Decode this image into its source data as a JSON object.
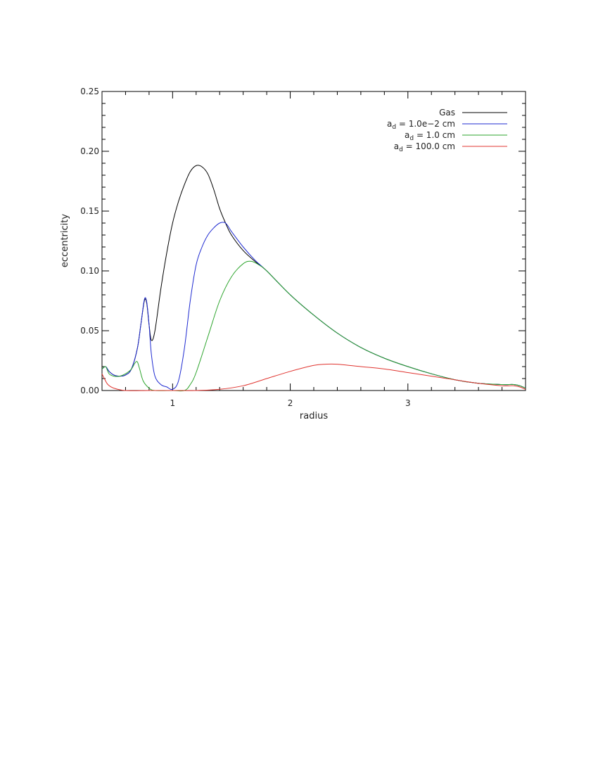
{
  "chart_data": {
    "type": "line",
    "xlabel": "radius",
    "ylabel": "eccentricity",
    "xlim": [
      0.4,
      4.0
    ],
    "ylim": [
      0.0,
      0.25
    ],
    "x_ticks": [
      1,
      2,
      3
    ],
    "x_tick_labels": [
      "1",
      "2",
      "3"
    ],
    "y_ticks": [
      0.0,
      0.05,
      0.1,
      0.15,
      0.2,
      0.25
    ],
    "y_tick_labels": [
      "0.00",
      "0.05",
      "0.10",
      "0.15",
      "0.20",
      "0.25"
    ],
    "grid": false,
    "legend_position": "top-right",
    "series": [
      {
        "name": "Gas",
        "color": "#000000",
        "points": [
          [
            0.4,
            0.018
          ],
          [
            0.43,
            0.02
          ],
          [
            0.46,
            0.016
          ],
          [
            0.5,
            0.013
          ],
          [
            0.55,
            0.012
          ],
          [
            0.6,
            0.013
          ],
          [
            0.65,
            0.018
          ],
          [
            0.7,
            0.035
          ],
          [
            0.73,
            0.055
          ],
          [
            0.76,
            0.075
          ],
          [
            0.78,
            0.073
          ],
          [
            0.8,
            0.055
          ],
          [
            0.82,
            0.042
          ],
          [
            0.85,
            0.05
          ],
          [
            0.9,
            0.085
          ],
          [
            0.95,
            0.115
          ],
          [
            1.0,
            0.14
          ],
          [
            1.05,
            0.158
          ],
          [
            1.1,
            0.172
          ],
          [
            1.15,
            0.183
          ],
          [
            1.2,
            0.188
          ],
          [
            1.25,
            0.187
          ],
          [
            1.3,
            0.181
          ],
          [
            1.35,
            0.168
          ],
          [
            1.4,
            0.152
          ],
          [
            1.45,
            0.14
          ],
          [
            1.5,
            0.13
          ],
          [
            1.6,
            0.117
          ],
          [
            1.7,
            0.108
          ],
          [
            1.8,
            0.1
          ],
          [
            2.0,
            0.08
          ],
          [
            2.2,
            0.063
          ],
          [
            2.4,
            0.048
          ],
          [
            2.6,
            0.036
          ],
          [
            2.8,
            0.027
          ],
          [
            3.0,
            0.02
          ],
          [
            3.2,
            0.014
          ],
          [
            3.4,
            0.009
          ],
          [
            3.6,
            0.006
          ],
          [
            3.8,
            0.005
          ],
          [
            3.9,
            0.005
          ],
          [
            3.95,
            0.004
          ],
          [
            4.0,
            0.002
          ]
        ]
      },
      {
        "name": "a_d = 1.0e-2 cm",
        "color": "#1f2bd1",
        "points": [
          [
            0.4,
            0.018
          ],
          [
            0.43,
            0.02
          ],
          [
            0.46,
            0.016
          ],
          [
            0.5,
            0.013
          ],
          [
            0.55,
            0.012
          ],
          [
            0.6,
            0.013
          ],
          [
            0.65,
            0.018
          ],
          [
            0.7,
            0.035
          ],
          [
            0.73,
            0.055
          ],
          [
            0.76,
            0.076
          ],
          [
            0.78,
            0.074
          ],
          [
            0.8,
            0.055
          ],
          [
            0.82,
            0.03
          ],
          [
            0.85,
            0.012
          ],
          [
            0.9,
            0.005
          ],
          [
            0.95,
            0.003
          ],
          [
            1.0,
            0.001
          ],
          [
            1.05,
            0.008
          ],
          [
            1.1,
            0.035
          ],
          [
            1.15,
            0.075
          ],
          [
            1.2,
            0.105
          ],
          [
            1.25,
            0.12
          ],
          [
            1.3,
            0.13
          ],
          [
            1.35,
            0.136
          ],
          [
            1.4,
            0.14
          ],
          [
            1.45,
            0.14
          ],
          [
            1.5,
            0.133
          ],
          [
            1.6,
            0.12
          ],
          [
            1.7,
            0.109
          ],
          [
            1.8,
            0.1
          ],
          [
            2.0,
            0.08
          ],
          [
            2.2,
            0.063
          ],
          [
            2.4,
            0.048
          ],
          [
            2.6,
            0.036
          ],
          [
            2.8,
            0.027
          ],
          [
            3.0,
            0.02
          ],
          [
            3.2,
            0.014
          ],
          [
            3.4,
            0.009
          ],
          [
            3.6,
            0.006
          ],
          [
            3.8,
            0.005
          ],
          [
            3.9,
            0.005
          ],
          [
            3.95,
            0.004
          ],
          [
            4.0,
            0.002
          ]
        ]
      },
      {
        "name": "a_d = 1.0 cm",
        "color": "#2ea52e",
        "points": [
          [
            0.4,
            0.018
          ],
          [
            0.43,
            0.02
          ],
          [
            0.46,
            0.014
          ],
          [
            0.5,
            0.012
          ],
          [
            0.55,
            0.012
          ],
          [
            0.6,
            0.014
          ],
          [
            0.65,
            0.018
          ],
          [
            0.68,
            0.023
          ],
          [
            0.7,
            0.024
          ],
          [
            0.72,
            0.018
          ],
          [
            0.75,
            0.008
          ],
          [
            0.8,
            0.002
          ],
          [
            0.85,
            0.0
          ],
          [
            1.0,
            0.0
          ],
          [
            1.1,
            0.0
          ],
          [
            1.15,
            0.005
          ],
          [
            1.2,
            0.015
          ],
          [
            1.3,
            0.045
          ],
          [
            1.4,
            0.075
          ],
          [
            1.5,
            0.095
          ],
          [
            1.6,
            0.106
          ],
          [
            1.67,
            0.108
          ],
          [
            1.75,
            0.104
          ],
          [
            1.8,
            0.1
          ],
          [
            2.0,
            0.08
          ],
          [
            2.2,
            0.063
          ],
          [
            2.4,
            0.048
          ],
          [
            2.6,
            0.036
          ],
          [
            2.8,
            0.027
          ],
          [
            3.0,
            0.02
          ],
          [
            3.2,
            0.014
          ],
          [
            3.4,
            0.009
          ],
          [
            3.6,
            0.006
          ],
          [
            3.8,
            0.005
          ],
          [
            3.9,
            0.005
          ],
          [
            3.95,
            0.004
          ],
          [
            4.0,
            0.002
          ]
        ]
      },
      {
        "name": "a_d = 100.0 cm",
        "color": "#e0342f",
        "points": [
          [
            0.4,
            0.014
          ],
          [
            0.42,
            0.01
          ],
          [
            0.45,
            0.005
          ],
          [
            0.5,
            0.002
          ],
          [
            0.6,
            0.0
          ],
          [
            0.8,
            0.0
          ],
          [
            1.0,
            0.0
          ],
          [
            1.2,
            0.0
          ],
          [
            1.4,
            0.001
          ],
          [
            1.6,
            0.004
          ],
          [
            1.8,
            0.01
          ],
          [
            2.0,
            0.016
          ],
          [
            2.2,
            0.021
          ],
          [
            2.3,
            0.022
          ],
          [
            2.4,
            0.022
          ],
          [
            2.6,
            0.02
          ],
          [
            2.8,
            0.018
          ],
          [
            3.0,
            0.015
          ],
          [
            3.2,
            0.012
          ],
          [
            3.4,
            0.009
          ],
          [
            3.6,
            0.006
          ],
          [
            3.8,
            0.004
          ],
          [
            3.9,
            0.004
          ],
          [
            3.95,
            0.003
          ],
          [
            4.0,
            0.001
          ]
        ]
      }
    ]
  },
  "legend": [
    {
      "name": "Gas",
      "main": "Gas",
      "sub": "",
      "rest": "",
      "color": "#000000"
    },
    {
      "name": "a_d = 1.0e-2 cm",
      "main": "a",
      "sub": "d",
      "rest": " = 1.0e−2 cm",
      "color": "#1f2bd1"
    },
    {
      "name": "a_d = 1.0 cm",
      "main": "a",
      "sub": "d",
      "rest": " = 1.0 cm",
      "color": "#2ea52e"
    },
    {
      "name": "a_d = 100.0 cm",
      "main": "a",
      "sub": "d",
      "rest": " = 100.0 cm",
      "color": "#e0342f"
    }
  ]
}
